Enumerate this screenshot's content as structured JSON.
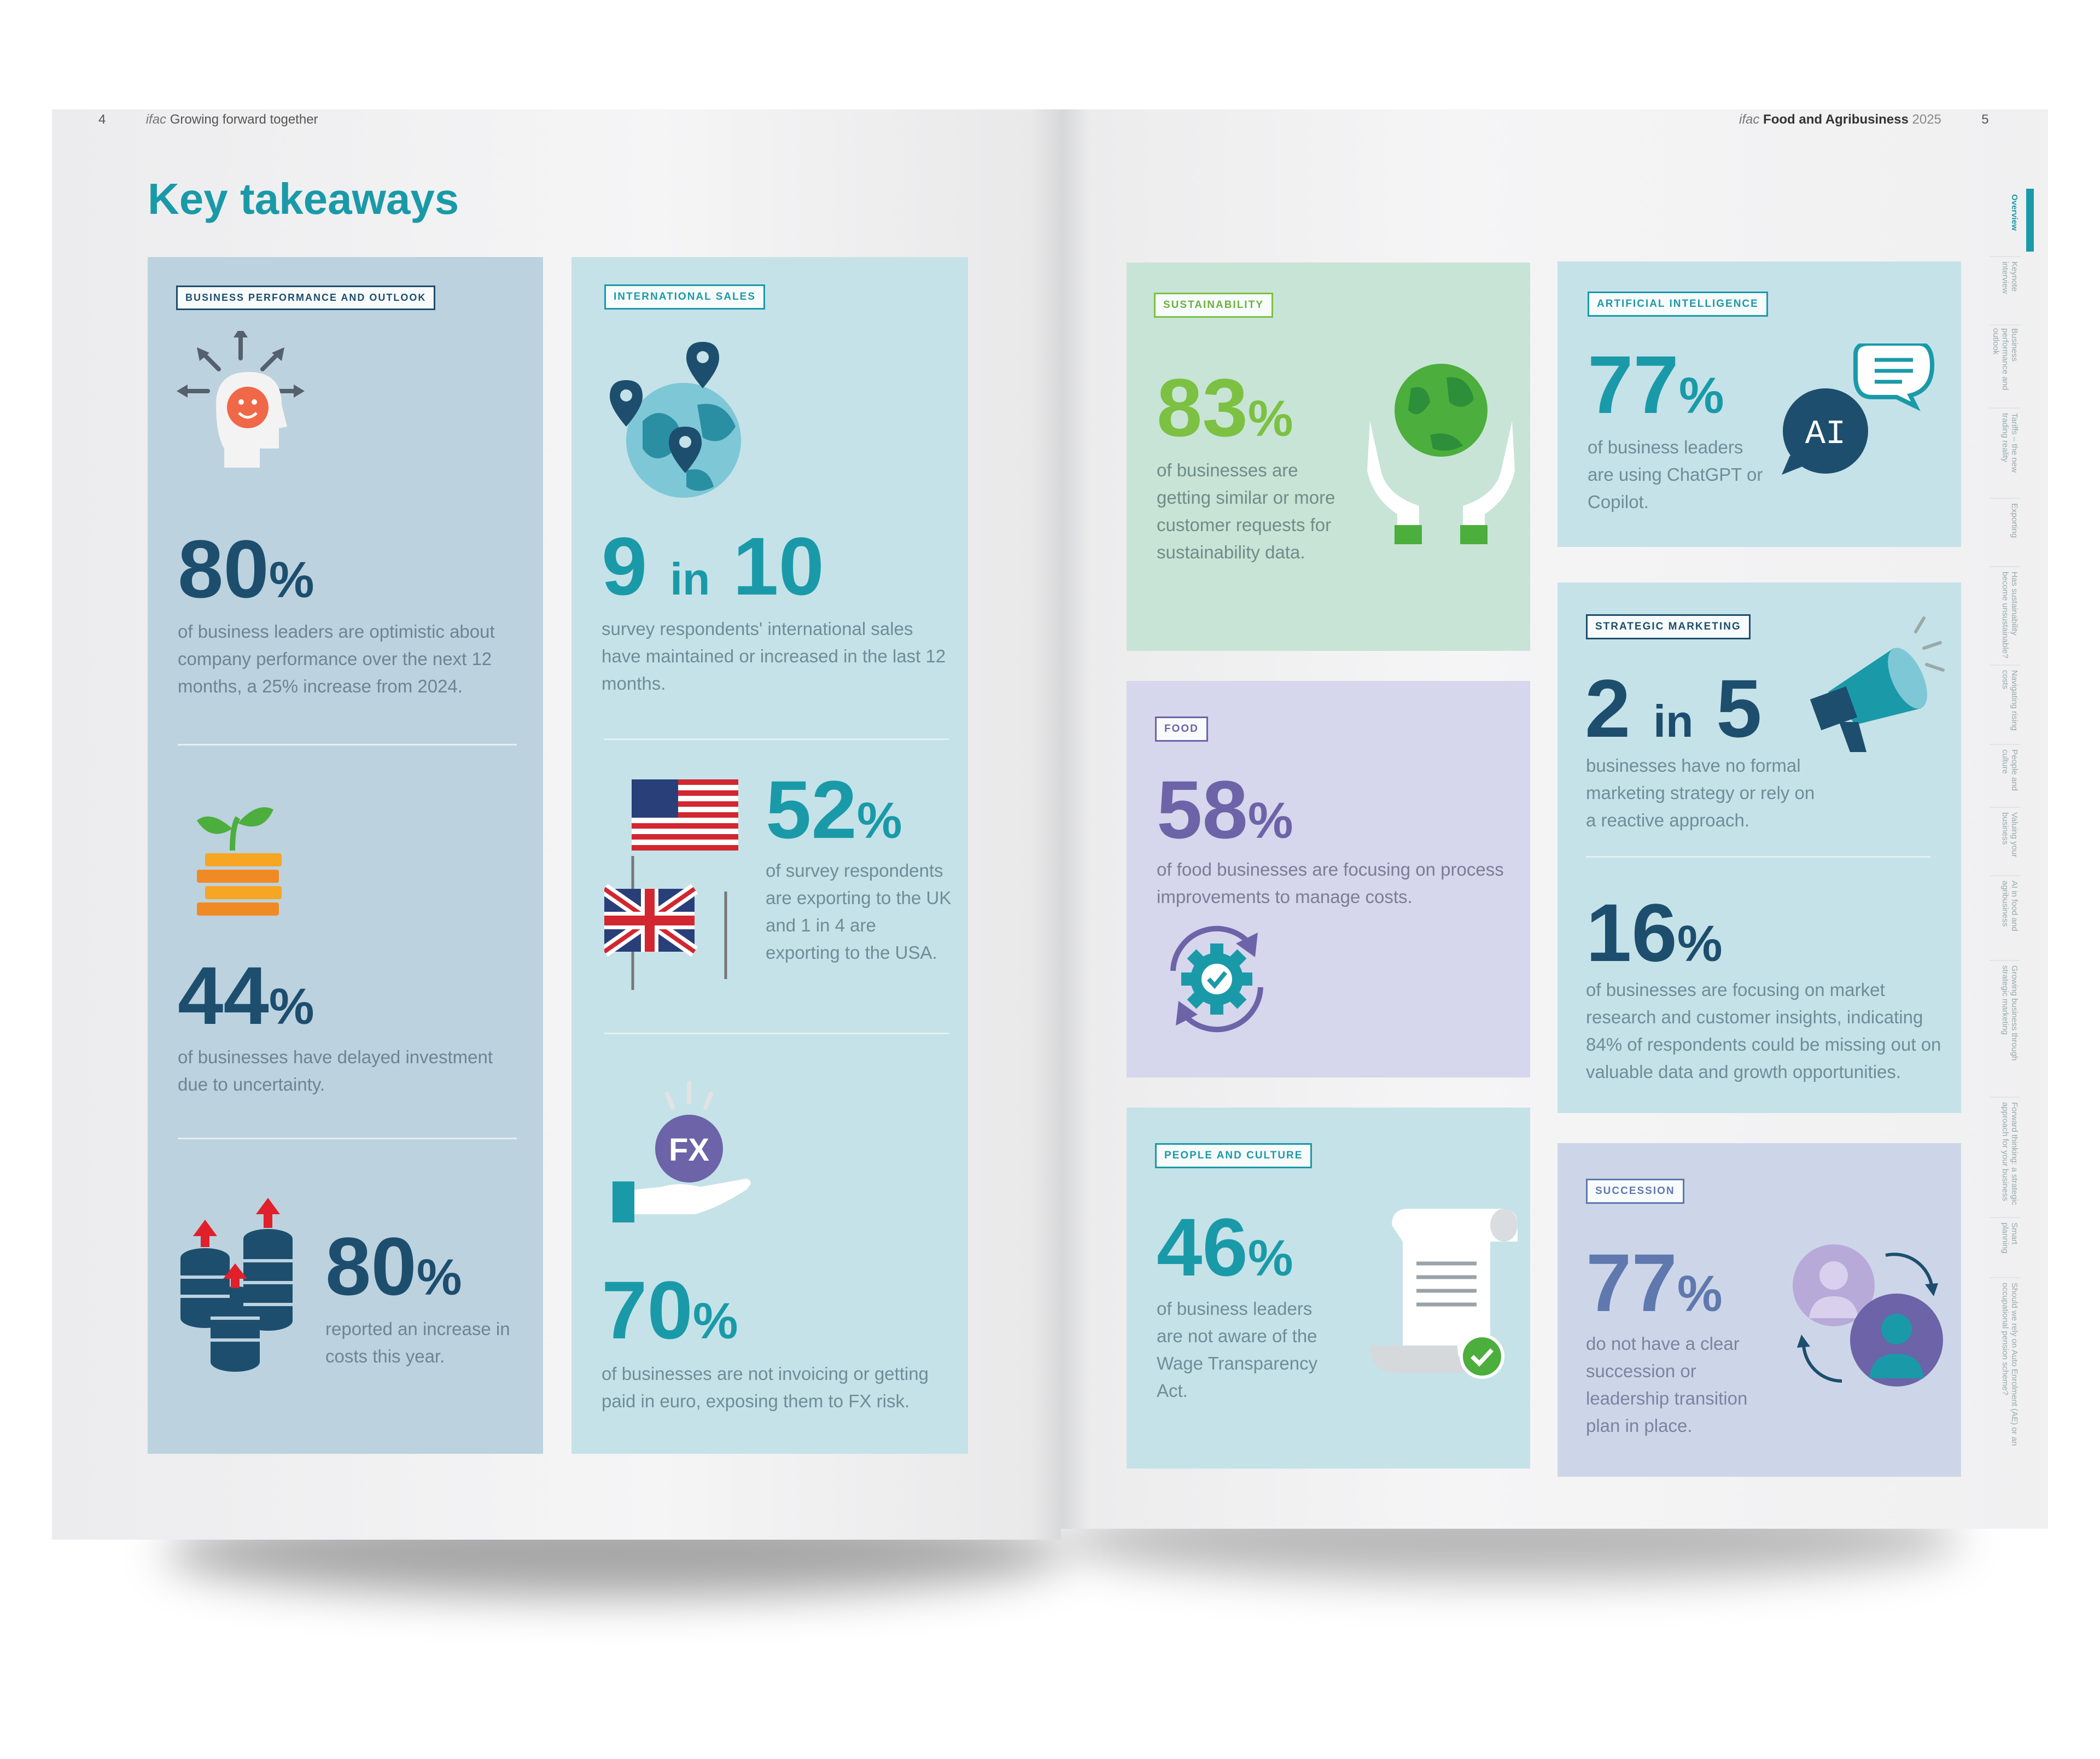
{
  "left_header": {
    "page_number": "4",
    "brand": "ifac",
    "running_title": "Growing forward together"
  },
  "right_header": {
    "brand": "ifac",
    "publication": "Food and Agribusiness",
    "year": "2025",
    "page_number": "5"
  },
  "title": "Key takeaways",
  "business": {
    "tag": "BUSINESS PERFORMANCE AND OUTLOOK",
    "stat1": {
      "value": "80",
      "unit": "%",
      "text": "of business leaders are optimistic about company performance over the next 12 months, a 25% increase from 2024."
    },
    "stat2": {
      "value": "44",
      "unit": "%",
      "text": "of businesses have delayed investment due to uncertainty."
    },
    "stat3": {
      "value": "80",
      "unit": "%",
      "text": "reported an increase in costs this year."
    }
  },
  "international": {
    "tag": "INTERNATIONAL SALES",
    "stat1": {
      "n": "9",
      "in": "in",
      "d": "10",
      "text": "survey respondents' international sales have maintained or increased in the last 12 months."
    },
    "stat2": {
      "value": "52",
      "unit": "%",
      "text": "of survey respondents are exporting to the UK and 1 in 4 are exporting to the USA."
    },
    "fx_label": "FX",
    "stat3": {
      "value": "70",
      "unit": "%",
      "text": "of businesses are not invoicing or getting paid in euro, exposing them to FX risk."
    }
  },
  "sustainability": {
    "tag": "SUSTAINABILITY",
    "value": "83",
    "unit": "%",
    "text": "of businesses are getting similar or more customer requests for sustainability data."
  },
  "ai": {
    "tag": "ARTIFICIAL INTELLIGENCE",
    "value": "77",
    "unit": "%",
    "text": "of business leaders are using ChatGPT or Copilot.",
    "icon_label": "AI"
  },
  "food": {
    "tag": "FOOD",
    "value": "58",
    "unit": "%",
    "text": "of food businesses are focusing on process improvements to manage costs."
  },
  "marketing": {
    "tag": "STRATEGIC MARKETING",
    "stat1": {
      "n": "2",
      "in": "in",
      "d": "5",
      "text": "businesses have no formal marketing strategy or rely on a reactive approach."
    },
    "stat2": {
      "value": "16",
      "unit": "%",
      "text": "of businesses are focusing on market research and customer insights, indicating 84% of respondents could be missing out on valuable data and growth opportunities."
    }
  },
  "people": {
    "tag": "PEOPLE AND CULTURE",
    "value": "46",
    "unit": "%",
    "text": "of business leaders are not aware of the Wage Transparency Act."
  },
  "succession": {
    "tag": "SUCCESSION",
    "value": "77",
    "unit": "%",
    "text": "do not have a clear succession or leadership transition plan in place."
  },
  "side_tabs": [
    "Overview",
    "Keynote interview",
    "Business performance and outlook",
    "Tariffs – the new trading reality",
    "Exporting",
    "Has sustainability become unsustainable?",
    "Navigating rising costs",
    "People and culture",
    "Valuing your business",
    "AI in food and agribusiness",
    "Growing business through strategic marketing",
    "Forward thinking: a strategic approach for your business",
    "Smart planning",
    "Should we rely on Auto Enrolment (AE) or an occupational pension scheme?"
  ],
  "colors": {
    "teal": "#1a9aa8",
    "navy": "#1d4e6e",
    "green": "#7cc142",
    "purple": "#6c63a8",
    "blue_slate": "#5f78ae"
  }
}
